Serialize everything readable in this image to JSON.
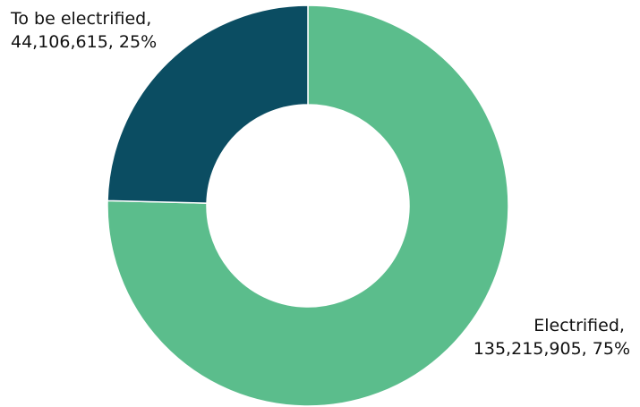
{
  "chart_data": {
    "type": "pie",
    "donut": true,
    "legend": "none",
    "slices": [
      {
        "label": "Electrified",
        "value": 135215905,
        "value_text": "135,215,905",
        "percent_text": "75%",
        "color": "#5bbd8c"
      },
      {
        "label": "To be electrified",
        "value": 44106615,
        "value_text": "44,106,615",
        "percent_text": "25%",
        "color": "#0b4d62"
      }
    ]
  }
}
